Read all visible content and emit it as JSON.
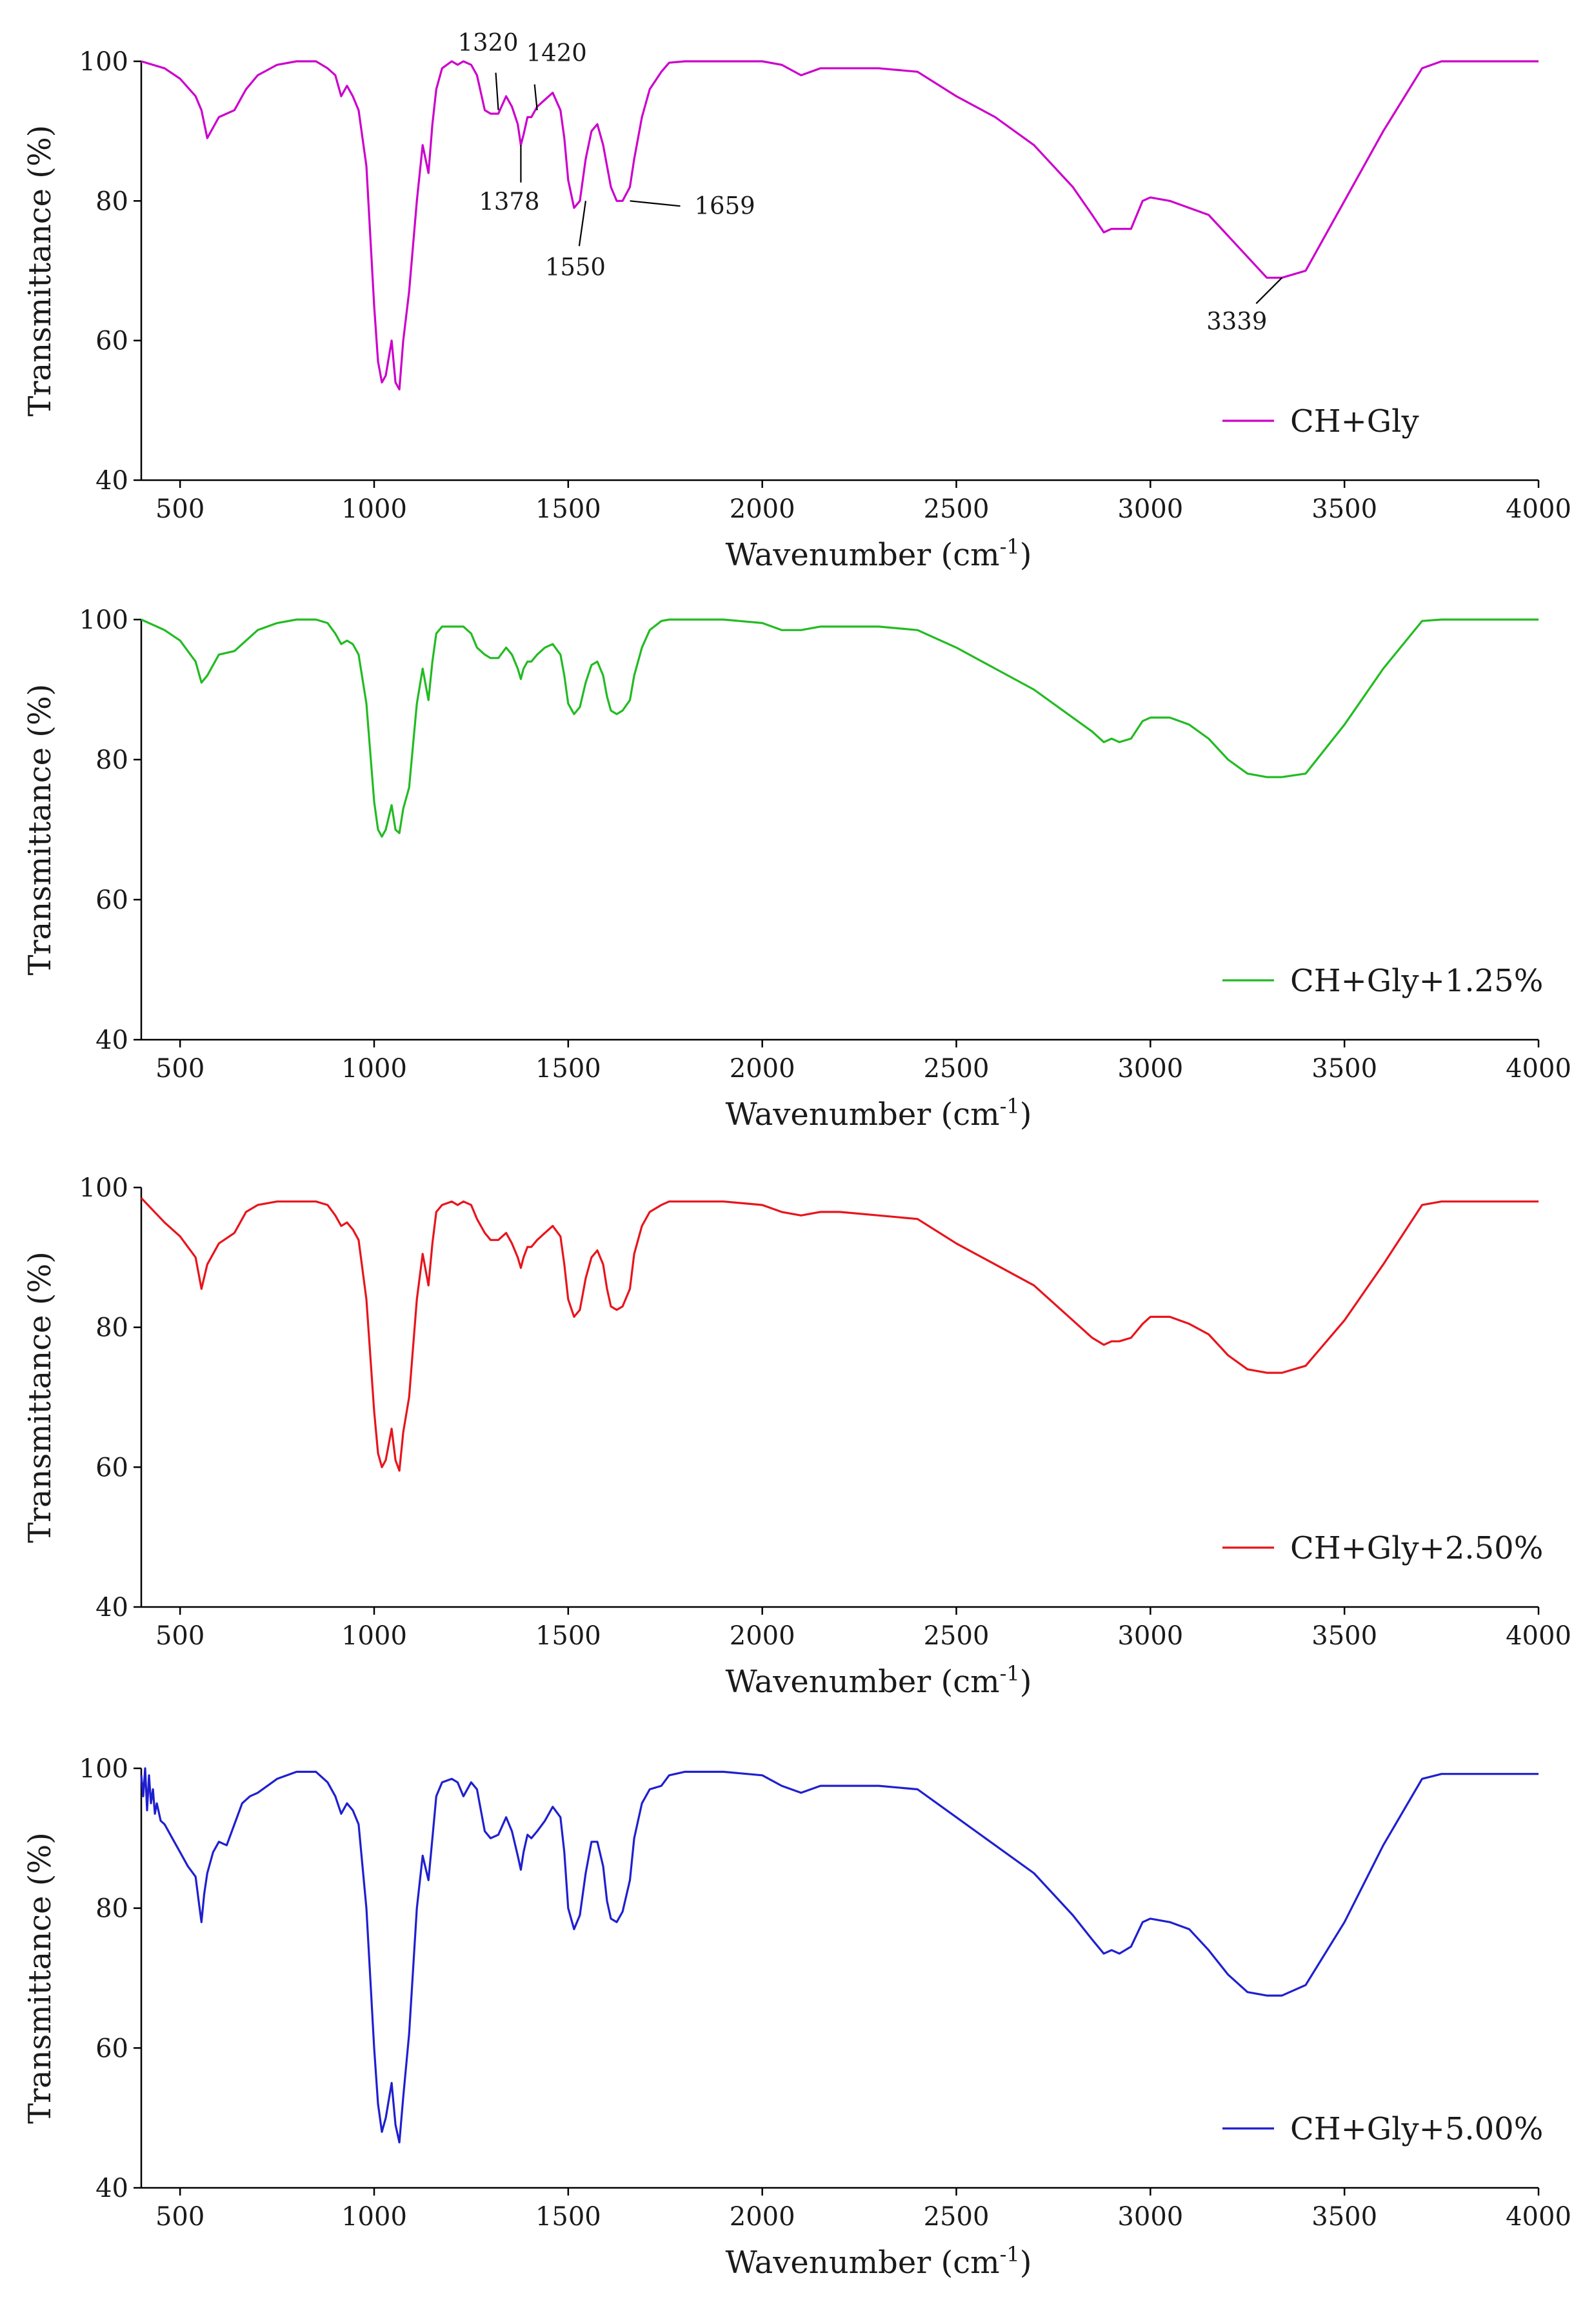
{
  "chart_data": [
    {
      "type": "line",
      "xlabel": "Wavenumber (cm",
      "xlabel_sup": "-1",
      "xlabel_close": ")",
      "ylabel": "Transmittance (%)",
      "xlim": [
        400,
        4000
      ],
      "ylim": [
        40,
        100
      ],
      "xticks": [
        "500",
        "1000",
        "1500",
        "2000",
        "2500",
        "3000",
        "3500",
        "4000"
      ],
      "yticks": [
        "40",
        "60",
        "80",
        "100"
      ],
      "legend": "CH+Gly",
      "legend_position": "bottom-right",
      "color": "#cc00cc",
      "x": [
        400,
        460,
        500,
        540,
        555,
        570,
        600,
        640,
        670,
        700,
        750,
        800,
        850,
        880,
        900,
        915,
        930,
        945,
        960,
        980,
        1000,
        1010,
        1020,
        1030,
        1045,
        1055,
        1065,
        1075,
        1090,
        1110,
        1125,
        1140,
        1150,
        1160,
        1175,
        1200,
        1215,
        1230,
        1250,
        1265,
        1285,
        1300,
        1320,
        1340,
        1355,
        1370,
        1378,
        1385,
        1395,
        1405,
        1420,
        1440,
        1460,
        1480,
        1490,
        1500,
        1515,
        1530,
        1545,
        1560,
        1575,
        1590,
        1600,
        1610,
        1625,
        1640,
        1659,
        1670,
        1690,
        1710,
        1740,
        1760,
        1800,
        1900,
        2000,
        2050,
        2100,
        2150,
        2200,
        2300,
        2400,
        2500,
        2600,
        2700,
        2800,
        2850,
        2880,
        2900,
        2920,
        2950,
        2980,
        3000,
        3050,
        3100,
        3150,
        3200,
        3250,
        3300,
        3339,
        3400,
        3500,
        3600,
        3700,
        3750,
        3800,
        4000
      ],
      "y": [
        100,
        99,
        97.5,
        95,
        93,
        89,
        92,
        93,
        96,
        98,
        99.5,
        100,
        100,
        99,
        98,
        95,
        96.5,
        95,
        93,
        85,
        65,
        57,
        54,
        55,
        60,
        54,
        53,
        60,
        67,
        80,
        88,
        84,
        91,
        96,
        99,
        100,
        99.5,
        100,
        99.5,
        98,
        93,
        92.5,
        92.5,
        95,
        93.5,
        91,
        88,
        89.5,
        92,
        92,
        93.5,
        94.5,
        95.5,
        93,
        89,
        83,
        79,
        80,
        86,
        90,
        91,
        88,
        85,
        82,
        80,
        80,
        82,
        86,
        92,
        96,
        98.5,
        99.8,
        100,
        100,
        100,
        99.5,
        98,
        99,
        99,
        99,
        98.5,
        95,
        92,
        88,
        82,
        78,
        75.5,
        76,
        76,
        76,
        80,
        80.5,
        80,
        79,
        78,
        75,
        72,
        69,
        69,
        70,
        80,
        90,
        99,
        100,
        100,
        100
      ],
      "annotations": [
        {
          "label": "1320",
          "x": 1320,
          "y": 93
        },
        {
          "label": "1378",
          "x": 1378,
          "y": 88
        },
        {
          "label": "1420",
          "x": 1420,
          "y": 93
        },
        {
          "label": "1550",
          "x": 1545,
          "y": 80
        },
        {
          "label": "1659",
          "x": 1659,
          "y": 80
        },
        {
          "label": "3339",
          "x": 3339,
          "y": 69
        }
      ]
    },
    {
      "type": "line",
      "xlabel": "Wavenumber (cm",
      "xlabel_sup": "-1",
      "xlabel_close": ")",
      "ylabel": "Transmittance (%)",
      "xlim": [
        400,
        4000
      ],
      "ylim": [
        40,
        100
      ],
      "xticks": [
        "500",
        "1000",
        "1500",
        "2000",
        "2500",
        "3000",
        "3500",
        "4000"
      ],
      "yticks": [
        "40",
        "60",
        "80",
        "100"
      ],
      "legend": "CH+Gly+1.25%",
      "legend_position": "bottom-right",
      "color": "#22bb22",
      "x": [
        400,
        460,
        500,
        540,
        555,
        570,
        600,
        640,
        670,
        700,
        750,
        800,
        850,
        880,
        900,
        915,
        930,
        945,
        960,
        980,
        1000,
        1010,
        1020,
        1030,
        1045,
        1055,
        1065,
        1075,
        1090,
        1110,
        1125,
        1140,
        1150,
        1160,
        1175,
        1200,
        1215,
        1230,
        1250,
        1265,
        1285,
        1300,
        1320,
        1340,
        1355,
        1370,
        1378,
        1385,
        1395,
        1405,
        1420,
        1440,
        1460,
        1480,
        1490,
        1500,
        1515,
        1530,
        1545,
        1560,
        1575,
        1590,
        1600,
        1610,
        1625,
        1640,
        1659,
        1670,
        1690,
        1710,
        1740,
        1760,
        1800,
        1900,
        2000,
        2050,
        2100,
        2150,
        2200,
        2300,
        2400,
        2500,
        2600,
        2700,
        2800,
        2850,
        2880,
        2900,
        2920,
        2950,
        2980,
        3000,
        3050,
        3100,
        3150,
        3200,
        3250,
        3300,
        3339,
        3400,
        3500,
        3600,
        3700,
        3750,
        3800,
        4000
      ],
      "y": [
        100,
        98.5,
        97,
        94,
        91,
        92,
        95,
        95.5,
        97,
        98.5,
        99.5,
        100,
        100,
        99.5,
        98,
        96.5,
        97,
        96.5,
        95,
        88,
        74,
        70,
        69,
        70,
        73.5,
        70,
        69.5,
        73,
        76,
        88,
        93,
        88.5,
        94,
        98,
        99,
        99,
        99,
        99,
        98,
        96,
        95,
        94.5,
        94.5,
        96,
        95,
        93,
        91.5,
        93,
        94,
        94,
        95,
        96,
        96.5,
        95,
        92,
        88,
        86.5,
        87.5,
        91,
        93.5,
        94,
        92,
        89,
        87,
        86.5,
        87,
        88.5,
        92,
        96,
        98.5,
        99.8,
        100,
        100,
        100,
        99.5,
        98.5,
        98.5,
        99,
        99,
        99,
        98.5,
        96,
        93,
        90,
        86,
        84,
        82.5,
        83,
        82.5,
        83,
        85.5,
        86,
        86,
        85,
        83,
        80,
        78,
        77.5,
        77.5,
        78,
        85,
        93,
        99.8,
        100,
        100,
        100
      ]
    },
    {
      "type": "line",
      "xlabel": "Wavenumber (cm",
      "xlabel_sup": "-1",
      "xlabel_close": ")",
      "ylabel": "Transmittance (%)",
      "xlim": [
        400,
        4000
      ],
      "ylim": [
        40,
        100
      ],
      "xticks": [
        "500",
        "1000",
        "1500",
        "2000",
        "2500",
        "3000",
        "3500",
        "4000"
      ],
      "yticks": [
        "40",
        "60",
        "80",
        "100"
      ],
      "legend": "CH+Gly+2.50%",
      "legend_position": "bottom-right",
      "color": "#e8141c",
      "x": [
        400,
        460,
        500,
        540,
        555,
        570,
        600,
        640,
        670,
        700,
        750,
        800,
        850,
        880,
        900,
        915,
        930,
        945,
        960,
        980,
        1000,
        1010,
        1020,
        1030,
        1045,
        1055,
        1065,
        1075,
        1090,
        1110,
        1125,
        1140,
        1150,
        1160,
        1175,
        1200,
        1215,
        1230,
        1250,
        1265,
        1285,
        1300,
        1320,
        1340,
        1355,
        1370,
        1378,
        1385,
        1395,
        1405,
        1420,
        1440,
        1460,
        1480,
        1490,
        1500,
        1515,
        1530,
        1545,
        1560,
        1575,
        1590,
        1600,
        1610,
        1625,
        1640,
        1659,
        1670,
        1690,
        1710,
        1740,
        1760,
        1800,
        1900,
        2000,
        2050,
        2100,
        2150,
        2200,
        2300,
        2400,
        2500,
        2600,
        2700,
        2800,
        2850,
        2880,
        2900,
        2920,
        2950,
        2980,
        3000,
        3050,
        3100,
        3150,
        3200,
        3250,
        3300,
        3339,
        3400,
        3500,
        3600,
        3700,
        3750,
        3800,
        4000
      ],
      "y": [
        98.5,
        95,
        93,
        90,
        85.5,
        89,
        92,
        93.5,
        96.5,
        97.5,
        98,
        98,
        98,
        97.5,
        96,
        94.5,
        95,
        94,
        92.5,
        84,
        68,
        62,
        60,
        61,
        65.5,
        61,
        59.5,
        65,
        70,
        84,
        90.5,
        86,
        92,
        96.5,
        97.5,
        98,
        97.5,
        98,
        97.5,
        95.5,
        93.5,
        92.5,
        92.5,
        93.5,
        92,
        90,
        88.5,
        90,
        91.5,
        91.5,
        92.5,
        93.5,
        94.5,
        93,
        89,
        84,
        81.5,
        82.5,
        87,
        90,
        91,
        89,
        85.5,
        83,
        82.5,
        83,
        85.5,
        90.5,
        94.5,
        96.5,
        97.5,
        98,
        98,
        98,
        97.5,
        96.5,
        96,
        96.5,
        96.5,
        96,
        95.5,
        92,
        89,
        86,
        81,
        78.5,
        77.5,
        78,
        78,
        78.5,
        80.5,
        81.5,
        81.5,
        80.5,
        79,
        76,
        74,
        73.5,
        73.5,
        74.5,
        81,
        89,
        97.5,
        98,
        98,
        98
      ]
    },
    {
      "type": "line",
      "xlabel": "Wavenumber (cm",
      "xlabel_sup": "-1",
      "xlabel_close": ")",
      "ylabel": "Transmittance (%)",
      "xlim": [
        400,
        4000
      ],
      "ylim": [
        40,
        100
      ],
      "xticks": [
        "500",
        "1000",
        "1500",
        "2000",
        "2500",
        "3000",
        "3500",
        "4000"
      ],
      "yticks": [
        "40",
        "60",
        "80",
        "100"
      ],
      "legend": "CH+Gly+5.00%",
      "legend_position": "bottom-right",
      "color": "#1f1fd0",
      "x": [
        400,
        405,
        410,
        415,
        420,
        425,
        430,
        435,
        440,
        450,
        460,
        480,
        500,
        520,
        540,
        548,
        555,
        562,
        570,
        585,
        600,
        620,
        640,
        660,
        680,
        700,
        750,
        800,
        850,
        880,
        900,
        915,
        930,
        945,
        960,
        980,
        1000,
        1010,
        1020,
        1030,
        1045,
        1055,
        1065,
        1075,
        1090,
        1110,
        1125,
        1140,
        1150,
        1160,
        1175,
        1200,
        1215,
        1230,
        1250,
        1265,
        1285,
        1300,
        1320,
        1340,
        1355,
        1370,
        1378,
        1385,
        1395,
        1405,
        1420,
        1440,
        1460,
        1480,
        1490,
        1500,
        1515,
        1530,
        1545,
        1560,
        1575,
        1590,
        1600,
        1610,
        1625,
        1640,
        1659,
        1670,
        1690,
        1710,
        1740,
        1760,
        1800,
        1900,
        2000,
        2050,
        2100,
        2150,
        2200,
        2300,
        2400,
        2500,
        2600,
        2700,
        2800,
        2850,
        2880,
        2900,
        2920,
        2950,
        2980,
        3000,
        3050,
        3100,
        3150,
        3200,
        3250,
        3300,
        3339,
        3400,
        3500,
        3600,
        3700,
        3750,
        3800,
        4000
      ],
      "y": [
        99,
        96,
        100,
        94,
        99,
        95,
        97,
        93.5,
        95,
        92.5,
        92,
        90,
        88,
        86,
        84.5,
        81,
        78,
        82,
        85,
        88,
        89.5,
        89,
        92,
        95,
        96,
        96.5,
        98.5,
        99.5,
        99.5,
        98,
        96,
        93.5,
        95,
        94,
        92,
        80,
        60,
        52,
        48,
        50,
        55,
        49,
        46.5,
        53,
        62,
        80,
        87.5,
        84,
        90,
        96,
        98,
        98.5,
        98,
        96,
        98,
        97,
        91,
        90,
        90.5,
        93,
        91,
        87.5,
        85.5,
        88,
        90.5,
        90,
        91,
        92.5,
        94.5,
        93,
        88,
        80,
        77,
        79,
        85,
        89.5,
        89.5,
        86,
        81,
        78.5,
        78,
        79.5,
        84,
        90,
        95,
        97,
        97.5,
        99,
        99.5,
        99.5,
        99,
        97.5,
        96.5,
        97.5,
        97.5,
        97.5,
        97,
        93,
        89,
        85,
        79,
        75.5,
        73.5,
        74,
        73.5,
        74.5,
        78,
        78.5,
        78,
        77,
        74,
        70.5,
        68,
        67.5,
        67.5,
        69,
        78,
        89,
        98.5,
        99.2,
        99.2,
        99.2
      ]
    }
  ]
}
